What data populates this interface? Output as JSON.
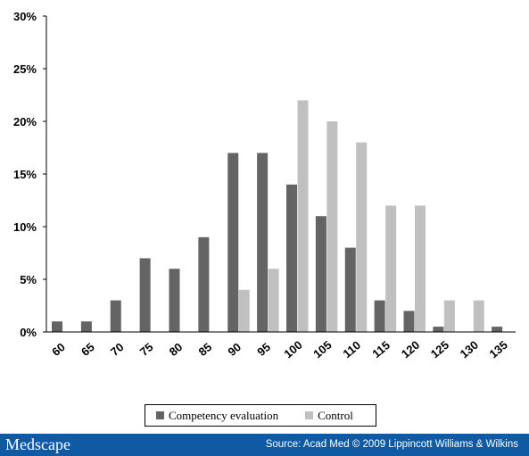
{
  "chart_data": {
    "type": "bar",
    "categories": [
      "60",
      "65",
      "70",
      "75",
      "80",
      "85",
      "90",
      "95",
      "100",
      "105",
      "110",
      "115",
      "120",
      "125",
      "130",
      "135"
    ],
    "series": [
      {
        "name": "Competency evaluation",
        "color": "#646464",
        "values": [
          1,
          1,
          3,
          7,
          6,
          9,
          17,
          17,
          14,
          11,
          8,
          3,
          2,
          0.5,
          0,
          0.5
        ]
      },
      {
        "name": "Control",
        "color": "#c0c0c0",
        "values": [
          0,
          0,
          0,
          0,
          0,
          0,
          4,
          6,
          22,
          20,
          18,
          12,
          12,
          3,
          3,
          0
        ]
      }
    ],
    "yticks": [
      "0%",
      "5%",
      "10%",
      "15%",
      "20%",
      "25%",
      "30%"
    ],
    "ylim": [
      0,
      30
    ],
    "legend_position": "bottom-center",
    "grid": false
  },
  "legend": {
    "item1": "Competency evaluation",
    "item2": "Control"
  },
  "footer": {
    "brand": "Medscape",
    "source": "Source: Acad Med © 2009 Lippincott Williams & Wilkins",
    "color": "#0f5aa3"
  }
}
